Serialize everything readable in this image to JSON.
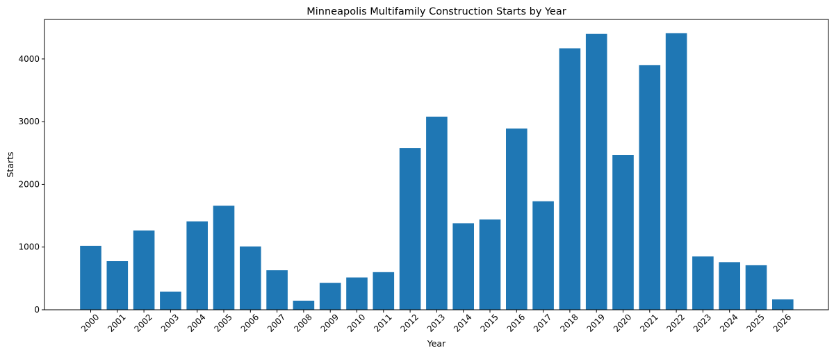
{
  "chart_data": {
    "type": "bar",
    "title": "Minneapolis Multifamily Construction Starts by Year",
    "xlabel": "Year",
    "ylabel": "Starts",
    "categories": [
      "2000",
      "2001",
      "2002",
      "2003",
      "2004",
      "2005",
      "2006",
      "2007",
      "2008",
      "2009",
      "2010",
      "2011",
      "2012",
      "2013",
      "2014",
      "2015",
      "2016",
      "2017",
      "2018",
      "2019",
      "2020",
      "2021",
      "2022",
      "2023",
      "2024",
      "2025",
      "2026"
    ],
    "values": [
      1020,
      775,
      1265,
      290,
      1410,
      1660,
      1010,
      630,
      145,
      430,
      515,
      600,
      2580,
      3080,
      1380,
      1440,
      2890,
      1730,
      4170,
      4400,
      2470,
      3900,
      4410,
      850,
      760,
      710,
      165
    ],
    "yticks": [
      0,
      1000,
      2000,
      3000,
      4000
    ],
    "ylim": [
      0,
      4630
    ],
    "bar_color": "#1f77b4",
    "grid": false,
    "legend": "none"
  }
}
